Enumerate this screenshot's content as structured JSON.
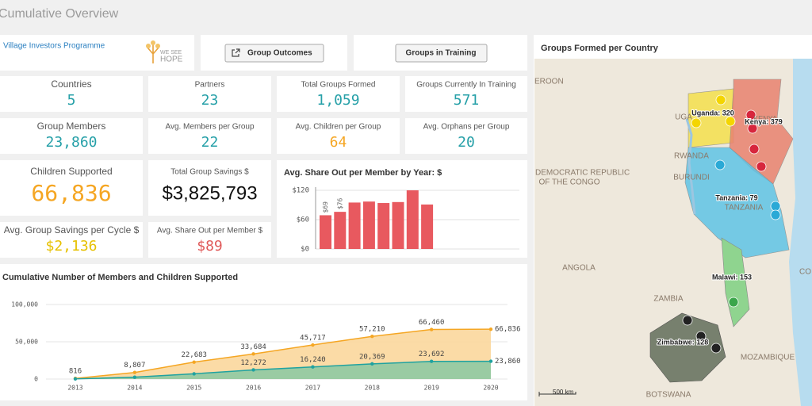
{
  "header": {
    "title": "Cumulative Overview"
  },
  "toolbar": {
    "programme": "Village Investors Programme",
    "logo": [
      "WE SEE",
      "HOPE"
    ],
    "buttons": [
      "Group Outcomes",
      "Groups in Training"
    ]
  },
  "kpis": [
    {
      "label": "Countries",
      "value": "5",
      "color": "#26a0a8"
    },
    {
      "label": "Partners",
      "value": "23",
      "color": "#26a0a8"
    },
    {
      "label": "Total Groups Formed",
      "value": "1,059",
      "color": "#26a0a8"
    },
    {
      "label": "Groups Currently In Training",
      "value": "571",
      "color": "#26a0a8"
    },
    {
      "label": "Group Members",
      "value": "23,860",
      "color": "#26a0a8"
    },
    {
      "label": "Avg. Members per Group",
      "value": "22",
      "color": "#26a0a8"
    },
    {
      "label": "Avg. Children per Group",
      "value": "64",
      "color": "#f5a623"
    },
    {
      "label": "Avg. Orphans per Group",
      "value": "20",
      "color": "#26a0a8"
    },
    {
      "label": "Children Supported",
      "value": "66,836",
      "color": "#f5a623"
    },
    {
      "label": "Total Group Savings $",
      "value": "$3,825,793",
      "color": "#111111"
    },
    {
      "label": "Avg. Group Savings per Cycle $",
      "value": "$2,136",
      "color": "#e6c000"
    },
    {
      "label": "Avg. Share Out per Member $",
      "value": "$89",
      "color": "#e05a5a"
    }
  ],
  "chart_data": [
    {
      "type": "bar",
      "title": "Avg. Share Out per Member by Year: $",
      "values": [
        69,
        76,
        95,
        97,
        94,
        96,
        120,
        91
      ],
      "value_labels": [
        "$69",
        "$76",
        null,
        null,
        null,
        null,
        null,
        null
      ],
      "color": "#e8595f",
      "ylim": [
        0,
        120
      ],
      "yticks": [
        {
          "value": 0,
          "label": "$0"
        },
        {
          "value": 60,
          "label": "$60"
        },
        {
          "value": 120,
          "label": "$120"
        }
      ],
      "grid": true
    },
    {
      "type": "area",
      "title": "Cumulative Number of Members and Children Supported",
      "categories": [
        "2013",
        "2014",
        "2015",
        "2016",
        "2017",
        "2018",
        "2019",
        "2020"
      ],
      "series": [
        {
          "color": "#f5a623",
          "fill": "#fbd79c",
          "values": [
            816,
            8807,
            22683,
            33684,
            45717,
            57210,
            66460,
            66836
          ],
          "value_labels": [
            "816",
            "8,807",
            "22,683",
            "33,684",
            "45,717",
            "57,210",
            "66,460",
            "66,836"
          ]
        },
        {
          "color": "#1fa2a0",
          "fill": "#8fc9a3",
          "values": [
            200,
            2500,
            7000,
            12272,
            16240,
            20369,
            23692,
            23860
          ],
          "value_labels": [
            null,
            null,
            null,
            "12,272",
            "16,240",
            "20,369",
            "23,692",
            "23,860"
          ]
        }
      ],
      "ylim": [
        0,
        100000
      ],
      "yticks": [
        0,
        {
          "value": 50000,
          "label": "50,000"
        },
        {
          "value": 100000,
          "label": "100,000"
        }
      ],
      "grid": true
    }
  ],
  "map": {
    "title": "Groups Formed per Country",
    "scale": "500 km",
    "places": [
      "EROON",
      "DEMOCRATIC REPUBLIC",
      "OF THE CONGO",
      "RWANDA",
      "BURUNDI",
      "ANGOLA",
      "ZAMBIA",
      "MOZAMBIQUE",
      "BOTSWANA",
      "UGA",
      "KENYA",
      "TANZANIA",
      "CO"
    ],
    "groups": [
      "Uganda: 320",
      "Kenya: 379",
      "Tanzania: 79",
      "Malawi: 153",
      "Zimbabwe: 128"
    ]
  }
}
